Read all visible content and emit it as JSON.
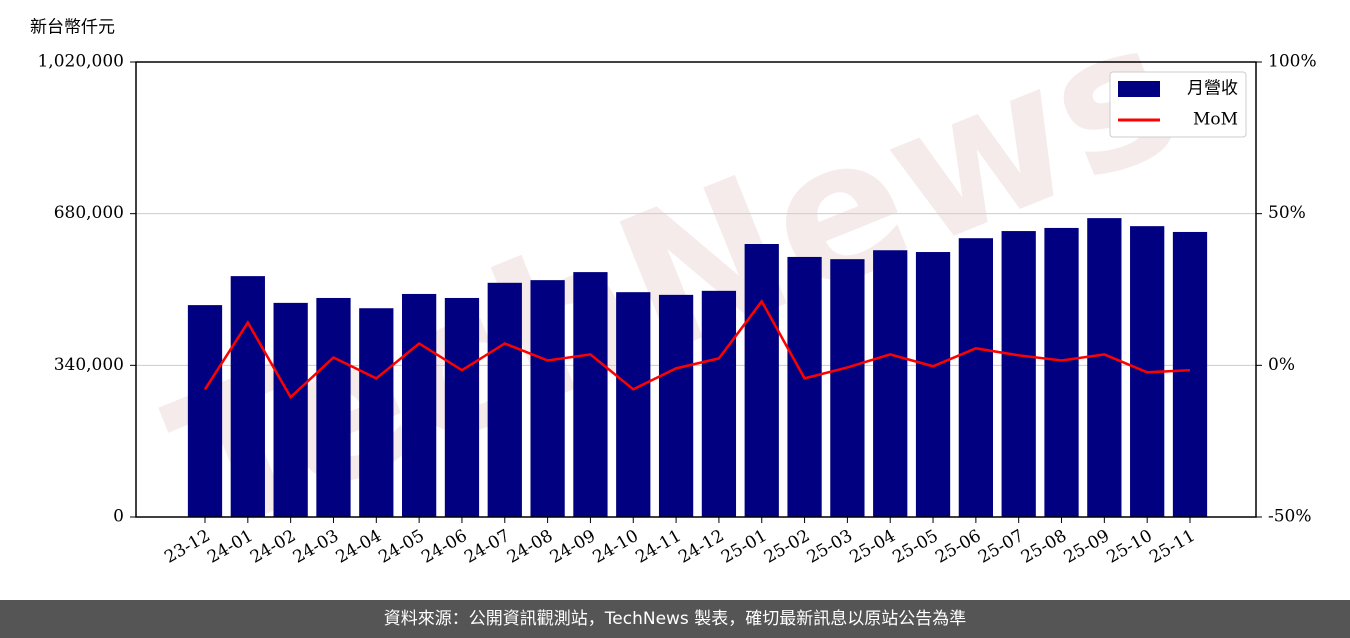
{
  "chart_data": {
    "type": "bar",
    "y_label": "新台幣仟元",
    "categories": [
      "23-12",
      "24-01",
      "24-02",
      "24-03",
      "24-04",
      "24-05",
      "24-06",
      "24-07",
      "24-08",
      "24-09",
      "24-10",
      "24-11",
      "24-12",
      "25-01",
      "25-02",
      "25-03",
      "25-04",
      "25-05",
      "25-06",
      "25-07",
      "25-08",
      "25-09",
      "25-10",
      "25-11"
    ],
    "series": [
      {
        "name": "月營收",
        "type": "bar",
        "color": "#000080",
        "axis": "y",
        "values": [
          475000,
          540000,
          480000,
          491000,
          468000,
          500000,
          491000,
          525000,
          531000,
          549000,
          504000,
          498000,
          507000,
          612000,
          583000,
          578000,
          598000,
          594000,
          625000,
          641000,
          648000,
          670000,
          652000,
          639000
        ]
      },
      {
        "name": "MoM",
        "type": "line",
        "color": "#ff0000",
        "axis": "y2",
        "values": [
          -7.9,
          14.1,
          -10.5,
          2.6,
          -4.3,
          7.2,
          -1.6,
          7.2,
          1.6,
          3.6,
          -7.9,
          -1.0,
          2.3,
          21.1,
          -4.3,
          -0.7,
          3.6,
          -0.3,
          5.6,
          3.3,
          1.6,
          3.6,
          -2.3,
          -1.6
        ]
      }
    ],
    "ylim": [
      0,
      1020000
    ],
    "yticks": [
      {
        "value": 0,
        "label": "0"
      },
      {
        "value": 340000,
        "label": "340,000"
      },
      {
        "value": 680000,
        "label": "680,000"
      },
      {
        "value": 1020000,
        "label": "1,020,000"
      }
    ],
    "y2lim": [
      -50,
      100
    ],
    "y2ticks": [
      {
        "value": -50,
        "label": "-50%"
      },
      {
        "value": 0,
        "label": "0%"
      },
      {
        "value": 50,
        "label": "50%"
      },
      {
        "value": 100,
        "label": "100%"
      }
    ],
    "grid": true,
    "legend": "upper right",
    "watermark": "TechNews"
  },
  "footer": "資料來源：公開資訊觀測站，TechNews 製表，確切最新訊息以原站公告為準"
}
